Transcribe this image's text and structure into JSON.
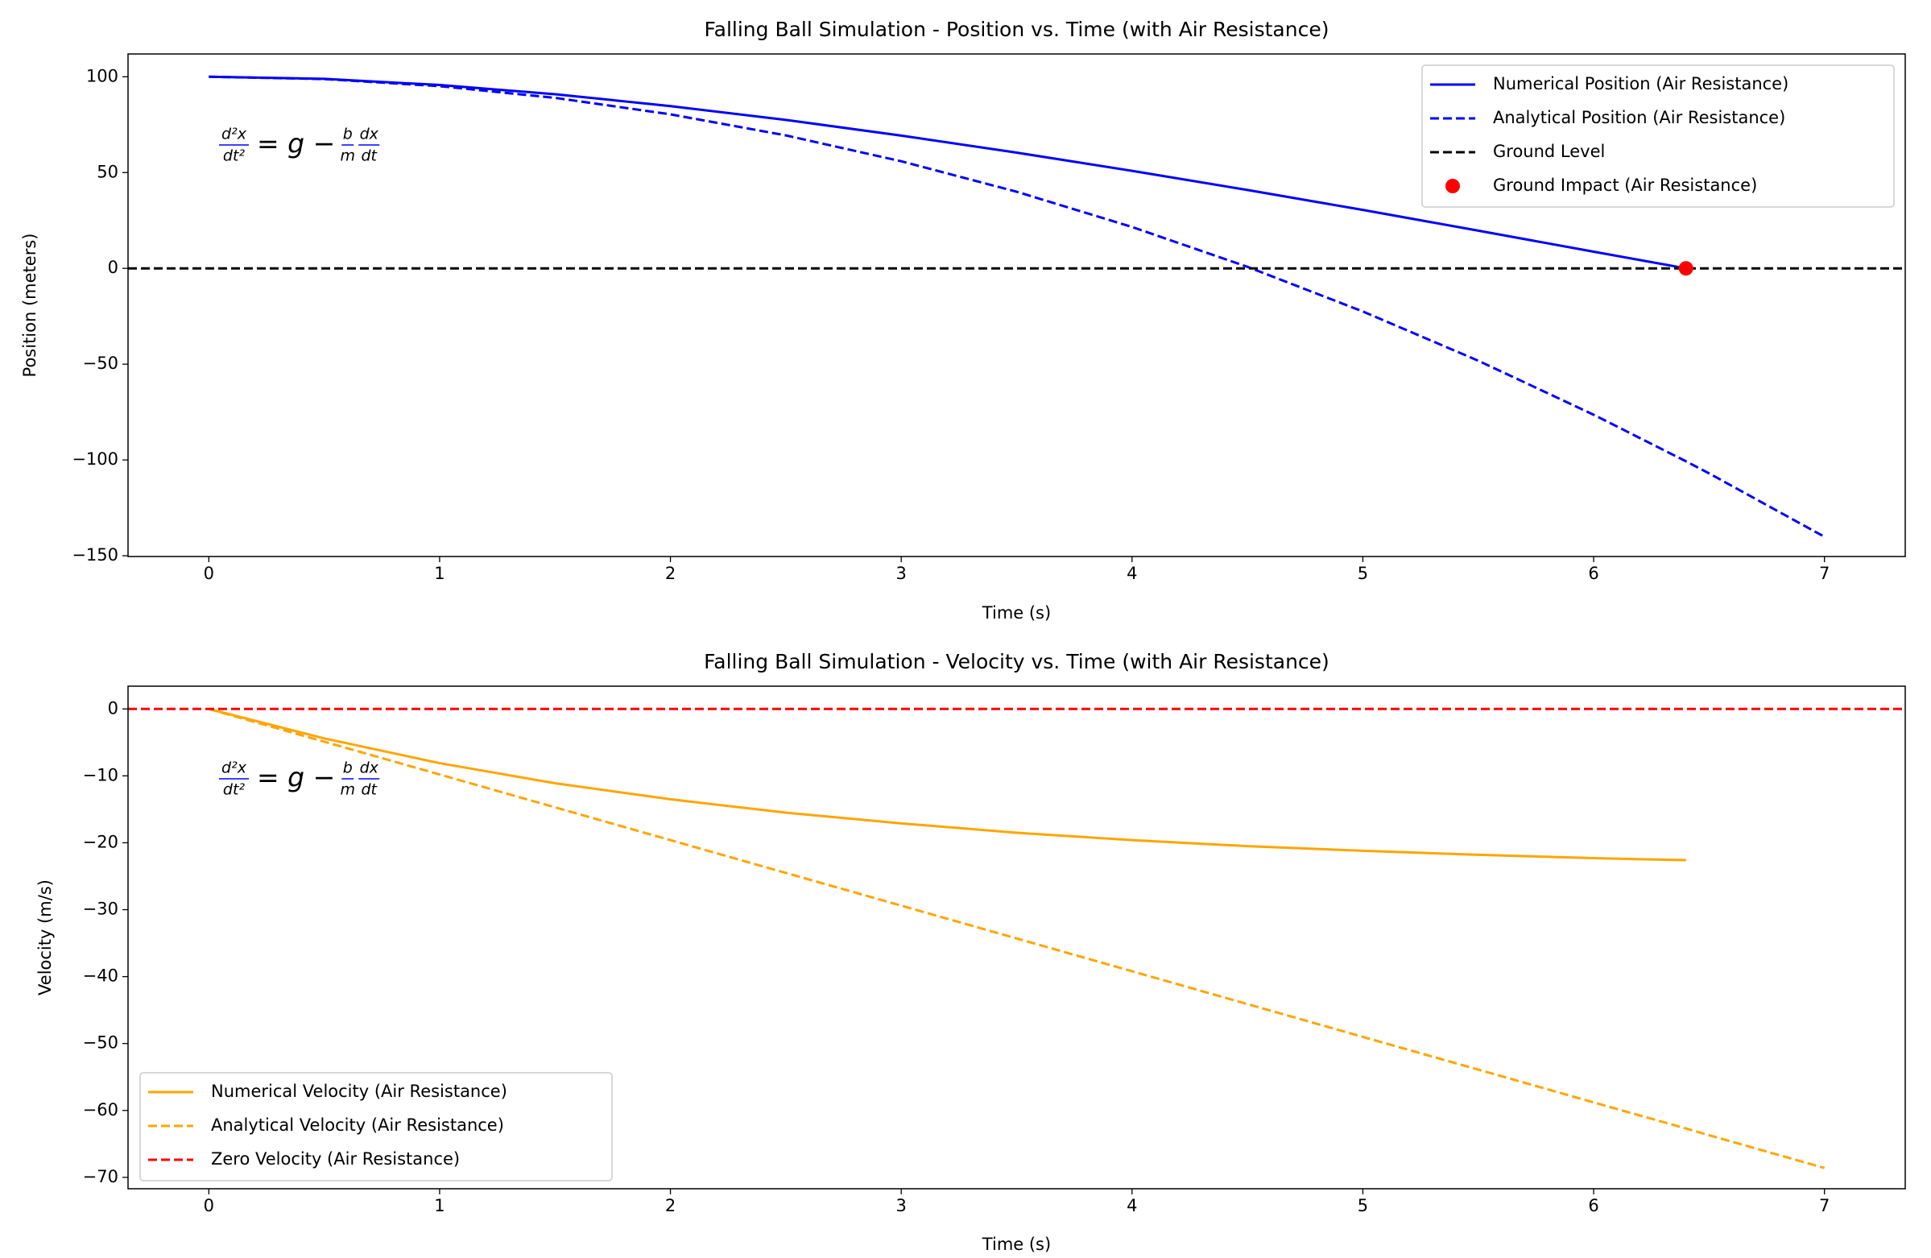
{
  "chart_data": [
    {
      "type": "line",
      "title": "Falling Ball Simulation - Position vs. Time (with Air Resistance)",
      "x_label": "Time (s)",
      "y_label": "Position (meters)",
      "x": [
        0,
        0.5,
        1,
        1.5,
        2,
        2.5,
        3,
        3.5,
        4,
        4.5,
        5,
        5.5,
        6,
        6.4,
        6.5,
        7
      ],
      "series": [
        {
          "name": "Numerical Position (Air Resistance)",
          "color": "#0000ff",
          "style": "solid",
          "values": [
            100,
            98.9,
            95.7,
            90.9,
            84.7,
            77.5,
            69.3,
            60.4,
            50.9,
            40.9,
            30.5,
            19.7,
            8.7,
            0,
            null,
            null
          ]
        },
        {
          "name": "Analytical Position (Air Resistance)",
          "color": "#0000ff",
          "style": "dashed",
          "values": [
            100,
            98.8,
            95.1,
            89.0,
            80.4,
            69.4,
            55.9,
            40.0,
            21.6,
            0.8,
            -22.5,
            -48.2,
            -76.4,
            -100.7,
            -107.0,
            -140.1
          ]
        },
        {
          "name": "Ground Level",
          "color": "#000000",
          "style": "dashed",
          "hline": 0
        },
        {
          "name": "Ground Impact (Air Resistance)",
          "color": "#ff0000",
          "style": "marker",
          "x": [
            6.4
          ],
          "values": [
            0
          ]
        }
      ],
      "xlim": [
        -0.35,
        7.35
      ],
      "ylim": [
        -150.4,
        111.9
      ],
      "xticks": [
        0,
        1,
        2,
        3,
        4,
        5,
        6,
        7
      ],
      "yticks": [
        {
          "value": -150,
          "label": "−150"
        },
        {
          "value": -100,
          "label": "−100"
        },
        {
          "value": -50,
          "label": "−50"
        },
        0,
        50,
        100
      ],
      "legend": "upper right",
      "annotation": [
        {
          "num": "d²x",
          "den": "dt²"
        },
        "= g −",
        {
          "num": "b",
          "den": "m"
        },
        {
          "num": "dx",
          "den": "dt"
        }
      ],
      "annotation_color": "#0000ff"
    },
    {
      "type": "line",
      "title": "Falling Ball Simulation - Velocity vs. Time (with Air Resistance)",
      "x_label": "Time (s)",
      "y_label": "Velocity (m/s)",
      "x": [
        0,
        0.5,
        1,
        1.5,
        2,
        2.5,
        3,
        3.5,
        4,
        4.5,
        5,
        5.5,
        6,
        6.4,
        6.5,
        7
      ],
      "series": [
        {
          "name": "Numerical Velocity (Air Resistance)",
          "color": "#ffa500",
          "style": "solid",
          "values": [
            0,
            -4.4,
            -8.1,
            -11.1,
            -13.5,
            -15.5,
            -17.1,
            -18.5,
            -19.6,
            -20.5,
            -21.2,
            -21.8,
            -22.3,
            -22.6,
            null,
            null
          ]
        },
        {
          "name": "Analytical Velocity (Air Resistance)",
          "color": "#ffa500",
          "style": "dashed",
          "values": [
            0,
            -4.9,
            -9.8,
            -14.7,
            -19.6,
            -24.5,
            -29.4,
            -34.3,
            -39.2,
            -44.1,
            -49.0,
            -53.9,
            -58.8,
            -62.7,
            -63.7,
            -68.6
          ]
        },
        {
          "name": "Zero Velocity (Air Resistance)",
          "color": "#ff0000",
          "style": "dashed",
          "hline": 0
        }
      ],
      "xlim": [
        -0.35,
        7.35
      ],
      "ylim": [
        -71.7,
        3.4
      ],
      "xticks": [
        0,
        1,
        2,
        3,
        4,
        5,
        6,
        7
      ],
      "yticks": [
        {
          "value": -70,
          "label": "−70"
        },
        {
          "value": -60,
          "label": "−60"
        },
        {
          "value": -50,
          "label": "−50"
        },
        {
          "value": -40,
          "label": "−40"
        },
        {
          "value": -30,
          "label": "−30"
        },
        {
          "value": -20,
          "label": "−20"
        },
        {
          "value": -10,
          "label": "−10"
        },
        0
      ],
      "legend": "lower left",
      "annotation": [
        {
          "num": "d²x",
          "den": "dt²"
        },
        "= g −",
        {
          "num": "b",
          "den": "m"
        },
        {
          "num": "dx",
          "den": "dt"
        }
      ],
      "annotation_color": "#0000ff"
    }
  ]
}
